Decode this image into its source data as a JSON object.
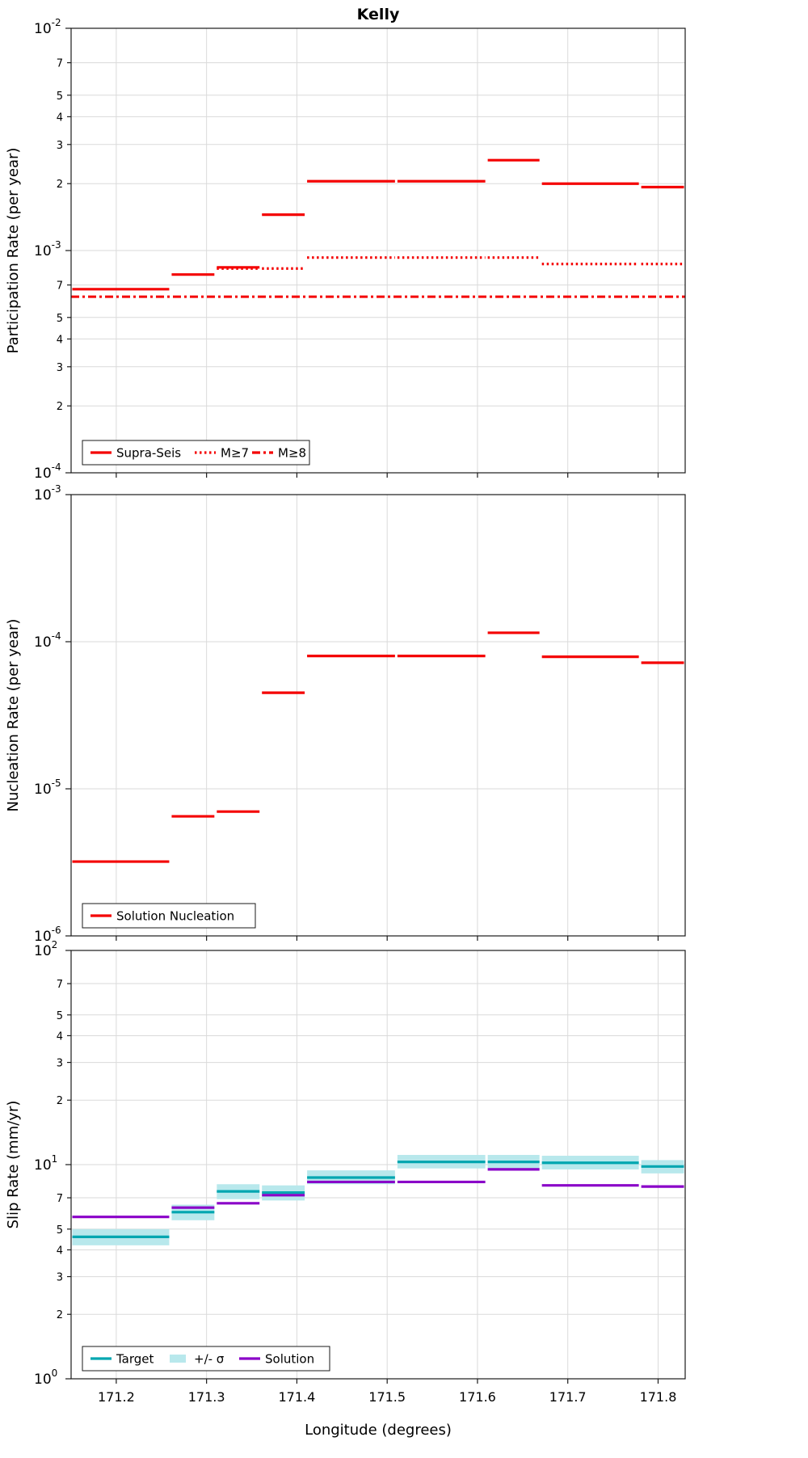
{
  "title": "Kelly",
  "xlabel": "Longitude (degrees)",
  "x_ticks": [
    171.2,
    171.3,
    171.4,
    171.5,
    171.6,
    171.7,
    171.8
  ],
  "x_tick_labels": [
    "171.2",
    "171.3",
    "171.4",
    "171.5",
    "171.6",
    "171.7",
    "171.8"
  ],
  "colors": {
    "red": "#f40000",
    "teal": "#00a6b0",
    "band_cyan": "#b8e8ec",
    "purple": "#8a00c8",
    "grid": "#dadada",
    "frame": "#1a1a1a"
  },
  "chart_data": [
    {
      "type": "step-line",
      "panel": "participation-rate",
      "ylabel": "Participation Rate (per year)",
      "xlim": [
        171.15,
        171.83
      ],
      "ylim": [
        0.0001,
        0.01
      ],
      "minor_tick_labels": [
        7,
        5,
        4,
        3,
        2
      ],
      "x_edges": [
        171.15,
        171.26,
        171.31,
        171.36,
        171.41,
        171.51,
        171.61,
        171.67,
        171.78,
        171.83
      ],
      "series": [
        {
          "name": "Supra-Seis",
          "style": "solid",
          "color": "#f40000",
          "values": [
            0.00067,
            0.00078,
            0.00084,
            0.00145,
            0.00205,
            0.00205,
            0.00255,
            0.002,
            0.00193
          ]
        },
        {
          "name": "M≥7",
          "style": "dotted",
          "color": "#f40000",
          "values": [
            null,
            null,
            0.00083,
            0.00083,
            0.00093,
            0.00093,
            0.00093,
            0.00087,
            0.00087
          ]
        },
        {
          "name": "M≥8",
          "style": "dashdot",
          "color": "#f40000",
          "continuous": true,
          "values": [
            0.00062,
            0.00062,
            0.00062,
            0.00062,
            0.00062,
            0.00062,
            0.00062,
            0.00062,
            0.00062
          ]
        }
      ]
    },
    {
      "type": "step-line",
      "panel": "nucleation-rate",
      "ylabel": "Nucleation Rate (per year)",
      "xlim": [
        171.15,
        171.83
      ],
      "ylim": [
        1e-06,
        0.001
      ],
      "minor_tick_labels": [],
      "x_edges": [
        171.15,
        171.26,
        171.31,
        171.36,
        171.41,
        171.51,
        171.61,
        171.67,
        171.78,
        171.83
      ],
      "series": [
        {
          "name": "Solution Nucleation",
          "style": "solid",
          "color": "#f40000",
          "values": [
            3.2e-06,
            6.5e-06,
            7e-06,
            4.5e-05,
            8e-05,
            8e-05,
            0.000115,
            7.9e-05,
            7.2e-05
          ]
        }
      ]
    },
    {
      "type": "step-line",
      "panel": "slip-rate",
      "ylabel": "Slip Rate (mm/yr)",
      "xlim": [
        171.15,
        171.83
      ],
      "ylim": [
        1,
        100
      ],
      "minor_tick_labels": [
        7,
        5,
        4,
        3,
        2
      ],
      "x_edges": [
        171.15,
        171.26,
        171.31,
        171.36,
        171.41,
        171.51,
        171.61,
        171.67,
        171.78,
        171.83
      ],
      "series": [
        {
          "name": "Target",
          "style": "solid",
          "color": "#00a6b0",
          "values": [
            4.6,
            6.0,
            7.5,
            7.4,
            8.7,
            10.3,
            10.3,
            10.2,
            9.8
          ]
        },
        {
          "name": "+/- σ",
          "type": "band",
          "color": "#b8e8ec",
          "lo": [
            4.2,
            5.5,
            6.9,
            6.8,
            8.1,
            9.6,
            9.6,
            9.5,
            9.1
          ],
          "hi": [
            5.0,
            6.5,
            8.1,
            8.0,
            9.4,
            11.1,
            11.1,
            11.0,
            10.5
          ]
        },
        {
          "name": "Solution",
          "style": "solid",
          "color": "#8a00c8",
          "values": [
            5.7,
            6.3,
            6.6,
            7.2,
            8.3,
            8.3,
            9.5,
            8.0,
            7.9
          ]
        }
      ]
    }
  ]
}
